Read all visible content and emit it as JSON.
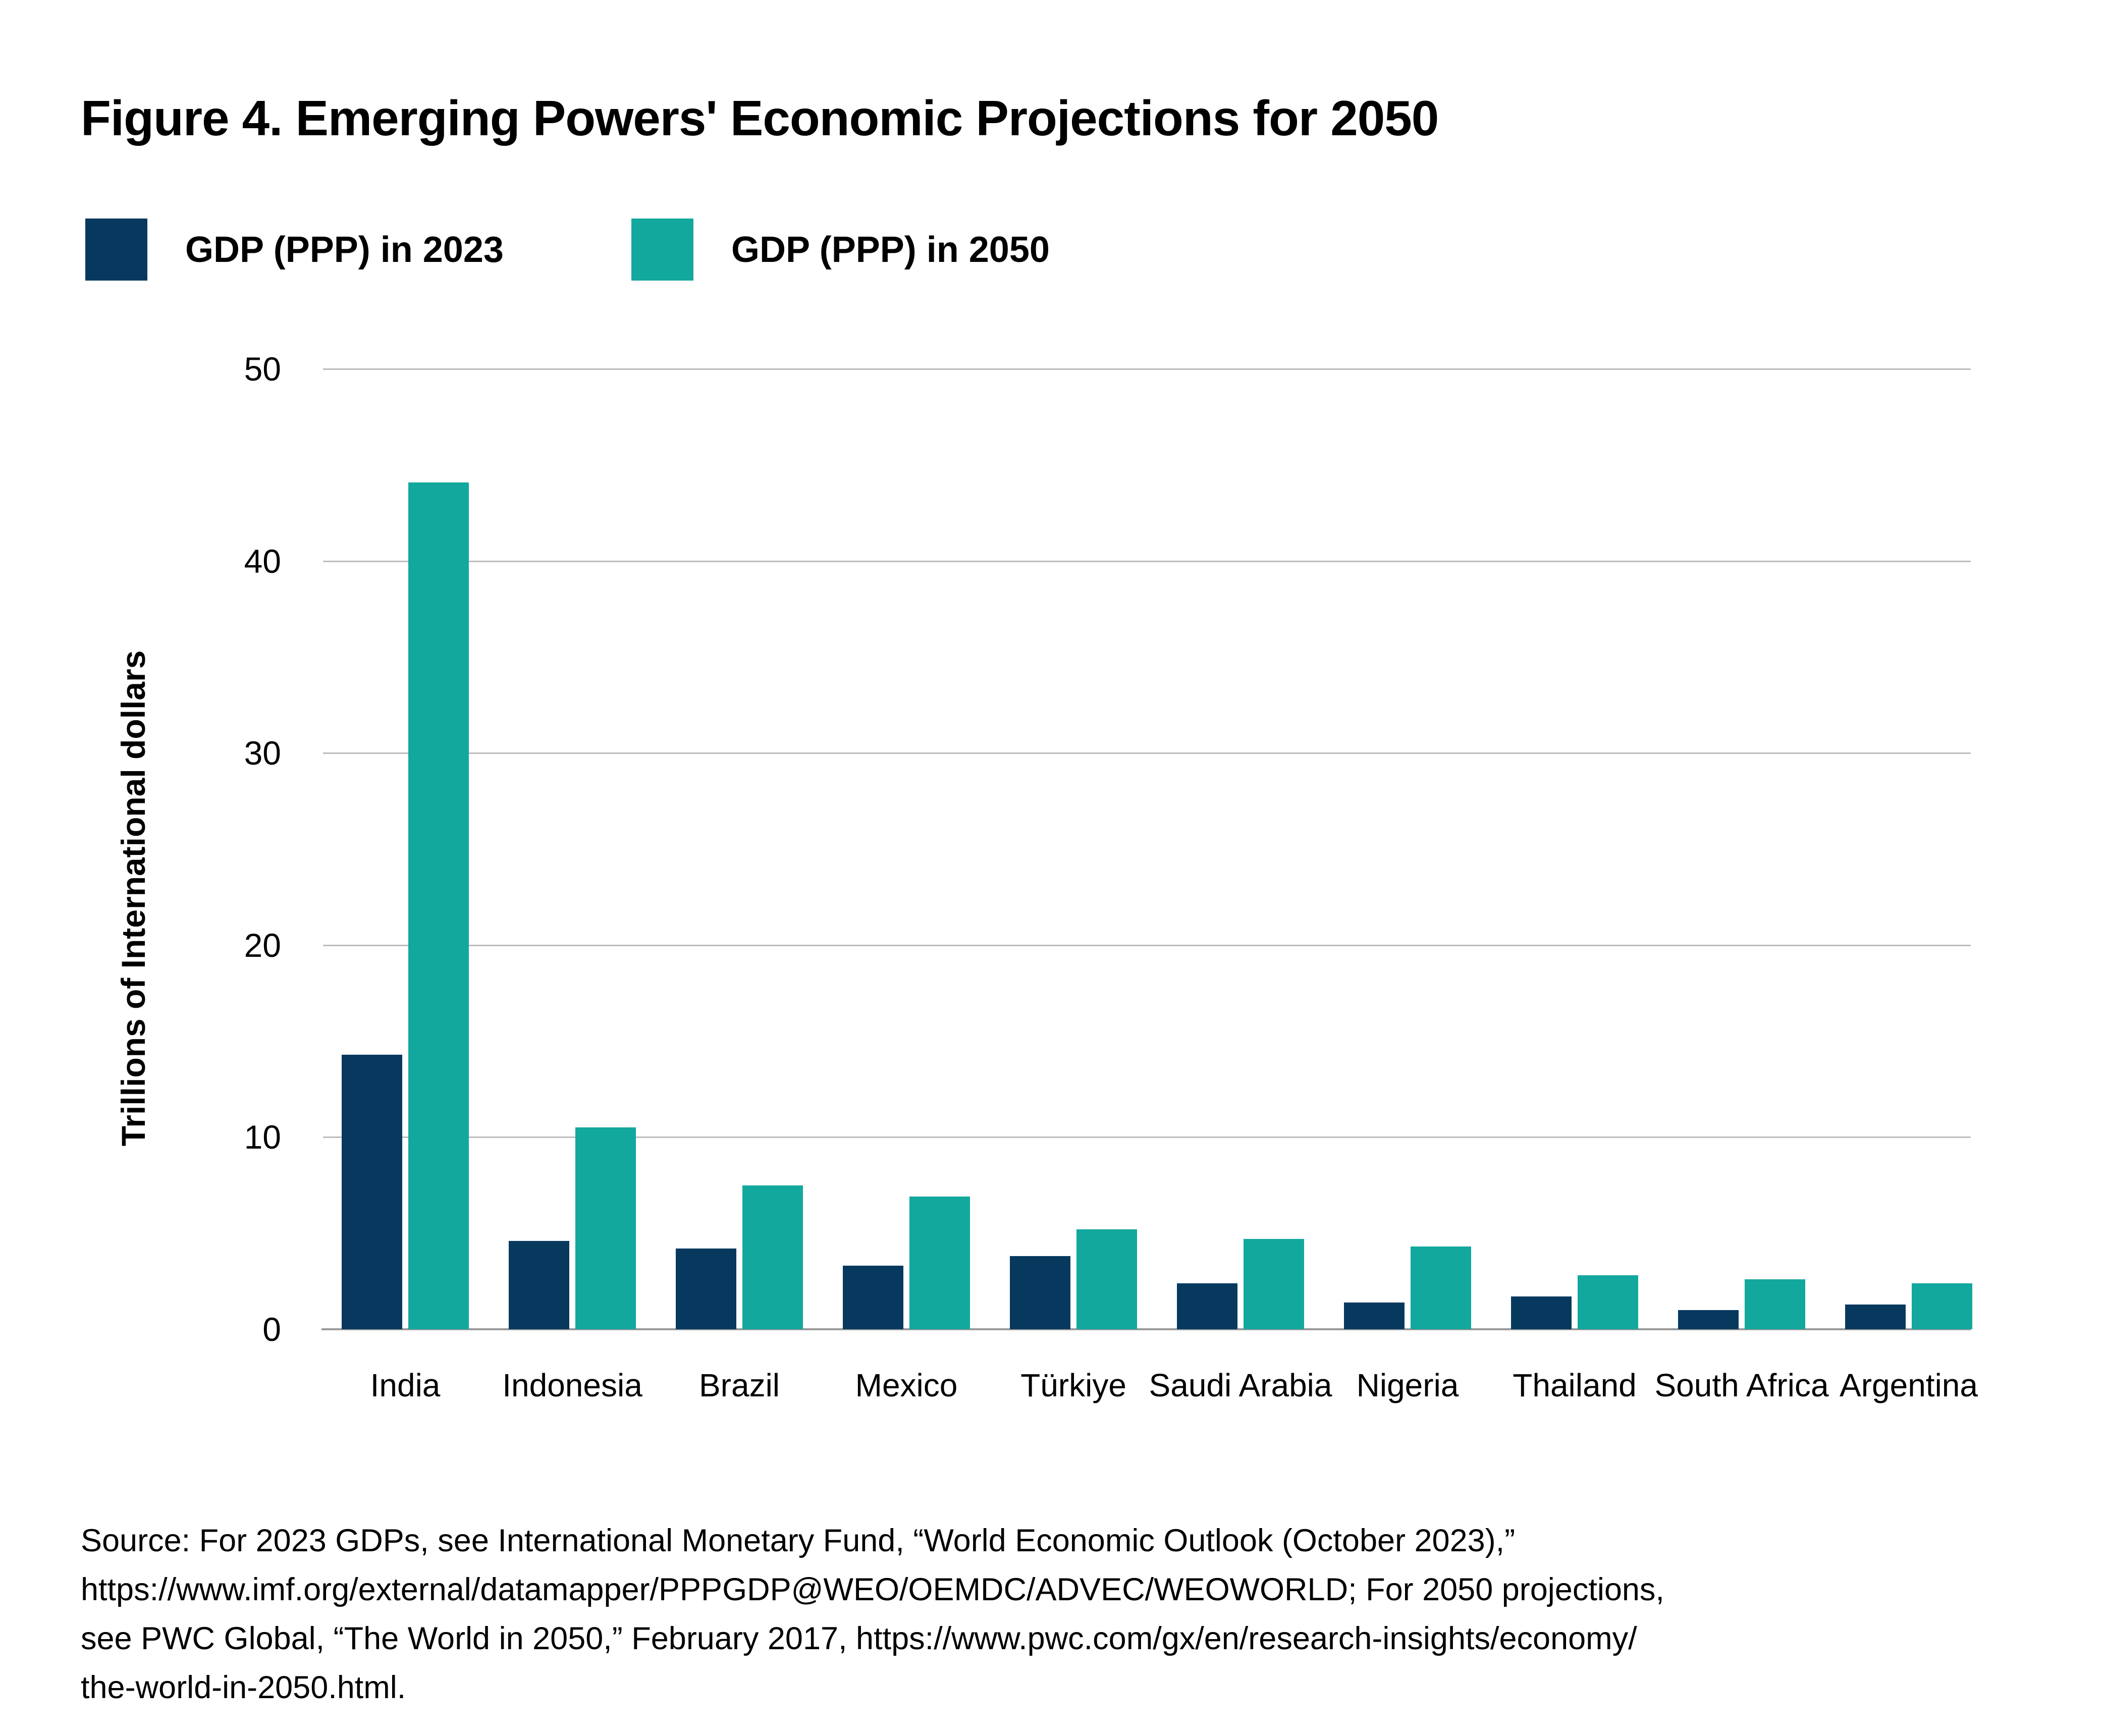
{
  "title": "Figure 4. Emerging Powers' Economic Projections for 2050",
  "colors": {
    "navy": "#07395F",
    "teal": "#13A89E",
    "gridline": "#BDBDBD",
    "axis_line": "#9A9A9A",
    "text": "#000000",
    "background": "#FFFFFF"
  },
  "legend": {
    "items": [
      {
        "label": "GDP (PPP) in 2023",
        "color": "#07395F"
      },
      {
        "label": "GDP (PPP) in 2050",
        "color": "#13A89E"
      }
    ]
  },
  "chart_data": {
    "type": "bar",
    "title": "Figure 4. Emerging Powers' Economic Projections for 2050",
    "xlabel": "",
    "ylabel": "Trillions of International dollars",
    "ylim": [
      0,
      50
    ],
    "yticks": [
      0,
      10,
      20,
      30,
      40,
      50
    ],
    "grid": true,
    "legend_position": "top-left",
    "categories": [
      "India",
      "Indonesia",
      "Brazil",
      "Mexico",
      "Türkiye",
      "Saudi Arabia",
      "Nigeria",
      "Thailand",
      "South Africa",
      "Argentina"
    ],
    "series": [
      {
        "name": "GDP (PPP) in 2023",
        "color": "#07395F",
        "values": [
          14.3,
          4.6,
          4.2,
          3.3,
          3.8,
          2.4,
          1.4,
          1.7,
          1.0,
          1.3
        ]
      },
      {
        "name": "GDP (PPP) in 2050",
        "color": "#13A89E",
        "values": [
          44.1,
          10.5,
          7.5,
          6.9,
          5.2,
          4.7,
          4.3,
          2.8,
          2.6,
          2.4
        ]
      }
    ]
  },
  "source": {
    "lines": [
      "Source: For 2023 GDPs, see International Monetary Fund, “World Economic Outlook (October 2023),”",
      "https://www.imf.org/external/datamapper/PPPGDP@WEO/OEMDC/ADVEC/WEOWORLD; For 2050 projections,",
      "see PWC Global, “The World in 2050,” February 2017, https://www.pwc.com/gx/en/research-insights/economy/",
      "the-world-in-2050.html."
    ]
  }
}
